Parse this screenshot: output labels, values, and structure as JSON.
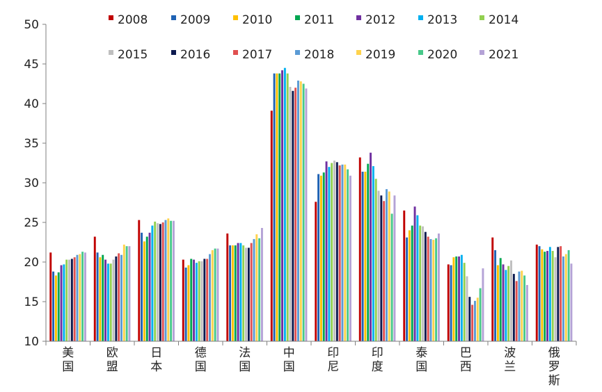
{
  "chart_data": {
    "type": "bar",
    "title": "",
    "xlabel": "",
    "ylabel": "",
    "ylim": [
      10,
      50
    ],
    "yticks": [
      10,
      15,
      20,
      25,
      30,
      35,
      40,
      45,
      50
    ],
    "grid": false,
    "legend_position": "top",
    "categories": [
      "美国",
      "欧盟",
      "日本",
      "德国",
      "法国",
      "中国",
      "印尼",
      "印度",
      "泰国",
      "巴西",
      "波兰",
      "俄罗斯"
    ],
    "series": [
      {
        "name": "2008",
        "color": "#C00000",
        "values": [
          21.2,
          23.2,
          25.3,
          20.3,
          23.6,
          39.1,
          27.6,
          33.2,
          26.5,
          19.7,
          23.1,
          22.2
        ]
      },
      {
        "name": "2009",
        "color": "#1F62B4",
        "values": [
          18.8,
          21.2,
          23.7,
          19.3,
          22.1,
          43.8,
          31.1,
          31.4,
          23.1,
          19.6,
          21.5,
          22.0
        ]
      },
      {
        "name": "2010",
        "color": "#FFC000",
        "values": [
          18.3,
          20.6,
          22.6,
          19.6,
          22.1,
          43.8,
          30.9,
          31.4,
          24.0,
          20.6,
          19.6,
          21.6
        ]
      },
      {
        "name": "2011",
        "color": "#00A651",
        "values": [
          18.7,
          20.9,
          23.2,
          20.4,
          22.1,
          43.8,
          31.3,
          32.4,
          24.6,
          20.7,
          20.5,
          21.3
        ]
      },
      {
        "name": "2012",
        "color": "#7030A0",
        "values": [
          19.6,
          20.3,
          23.7,
          20.3,
          22.4,
          44.2,
          32.7,
          33.8,
          27.0,
          20.7,
          19.7,
          21.4
        ]
      },
      {
        "name": "2013",
        "color": "#00B0F0",
        "values": [
          19.7,
          19.8,
          24.6,
          19.9,
          22.4,
          44.5,
          32.0,
          32.1,
          25.9,
          20.9,
          19.0,
          21.9
        ]
      },
      {
        "name": "2014",
        "color": "#92D050",
        "values": [
          20.3,
          19.8,
          25.1,
          20.1,
          22.1,
          43.8,
          32.5,
          30.5,
          24.6,
          19.9,
          19.5,
          21.4
        ]
      },
      {
        "name": "2015",
        "color": "#BFBFBF",
        "values": [
          20.3,
          20.3,
          24.9,
          20.1,
          21.8,
          42.1,
          32.8,
          29.0,
          24.5,
          18.2,
          20.2,
          20.6
        ]
      },
      {
        "name": "2016",
        "color": "#0D1A4F",
        "values": [
          20.4,
          20.7,
          24.8,
          20.4,
          21.8,
          41.6,
          32.6,
          28.4,
          23.8,
          15.6,
          18.5,
          21.9
        ]
      },
      {
        "name": "2017",
        "color": "#E05050",
        "values": [
          20.6,
          21.1,
          25.0,
          20.4,
          22.4,
          42.0,
          32.2,
          27.7,
          23.2,
          14.6,
          17.6,
          22.0
        ]
      },
      {
        "name": "2018",
        "color": "#5B9BD5",
        "values": [
          20.9,
          20.9,
          25.3,
          21.0,
          22.9,
          42.9,
          32.3,
          29.2,
          22.9,
          15.1,
          18.8,
          20.7
        ]
      },
      {
        "name": "2019",
        "color": "#FFD34D",
        "values": [
          21.0,
          22.2,
          25.5,
          21.5,
          23.5,
          42.8,
          32.3,
          28.9,
          22.8,
          15.5,
          18.9,
          21.0
        ]
      },
      {
        "name": "2020",
        "color": "#48C98A",
        "values": [
          21.3,
          22.0,
          25.2,
          21.7,
          23.0,
          42.5,
          31.7,
          26.1,
          23.0,
          16.7,
          18.3,
          21.5
        ]
      },
      {
        "name": "2021",
        "color": "#B4A2D6",
        "values": [
          21.2,
          22.0,
          25.2,
          21.7,
          24.3,
          41.9,
          30.9,
          28.4,
          23.6,
          19.2,
          17.1,
          19.8
        ]
      }
    ]
  }
}
